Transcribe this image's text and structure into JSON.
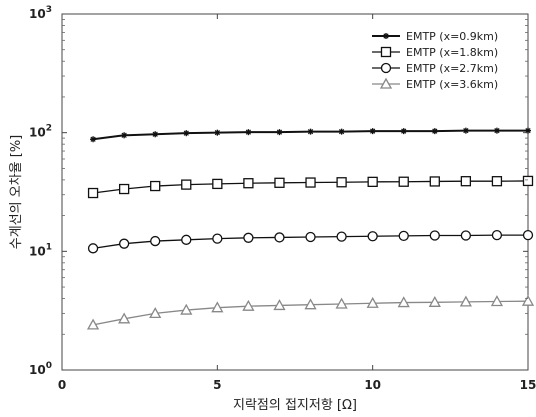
{
  "chart_data": {
    "type": "line",
    "xlabel": "지락점의 접지저항 [Ω]",
    "ylabel": "수계선의 오차율 [%]",
    "xlim": [
      0,
      15
    ],
    "ylim": [
      1,
      1000
    ],
    "yscale": "log",
    "x_ticks": [
      "0",
      "5",
      "10",
      "15"
    ],
    "y_ticks": [
      {
        "base": "10",
        "exp": "0"
      },
      {
        "base": "10",
        "exp": "1"
      },
      {
        "base": "10",
        "exp": "2"
      },
      {
        "base": "10",
        "exp": "3"
      }
    ],
    "x": [
      1,
      2,
      3,
      4,
      5,
      6,
      7,
      8,
      9,
      10,
      11,
      12,
      13,
      14,
      15
    ],
    "grid": false,
    "legend_position": "top-right",
    "series": [
      {
        "name": "EMTP (x=0.9km)",
        "marker": "asterisk",
        "color": "#111111",
        "values": [
          88,
          95,
          97,
          99,
          100,
          101,
          101,
          102,
          102,
          103,
          103,
          103,
          104,
          104,
          104
        ]
      },
      {
        "name": "EMTP (x=1.8km)",
        "marker": "square",
        "color": "#111111",
        "values": [
          31,
          33.5,
          35.5,
          36.5,
          37,
          37.5,
          37.8,
          38,
          38.2,
          38.5,
          38.6,
          38.8,
          39,
          39,
          39.2
        ]
      },
      {
        "name": "EMTP (x=2.7km)",
        "marker": "circle",
        "color": "#111111",
        "values": [
          10.6,
          11.6,
          12.2,
          12.5,
          12.8,
          13.0,
          13.1,
          13.2,
          13.3,
          13.4,
          13.5,
          13.6,
          13.6,
          13.7,
          13.7
        ]
      },
      {
        "name": "EMTP (x=3.6km)",
        "marker": "triangle",
        "color": "#888888",
        "values": [
          2.4,
          2.7,
          3.0,
          3.2,
          3.35,
          3.45,
          3.5,
          3.55,
          3.6,
          3.65,
          3.7,
          3.72,
          3.75,
          3.78,
          3.8
        ]
      }
    ]
  }
}
